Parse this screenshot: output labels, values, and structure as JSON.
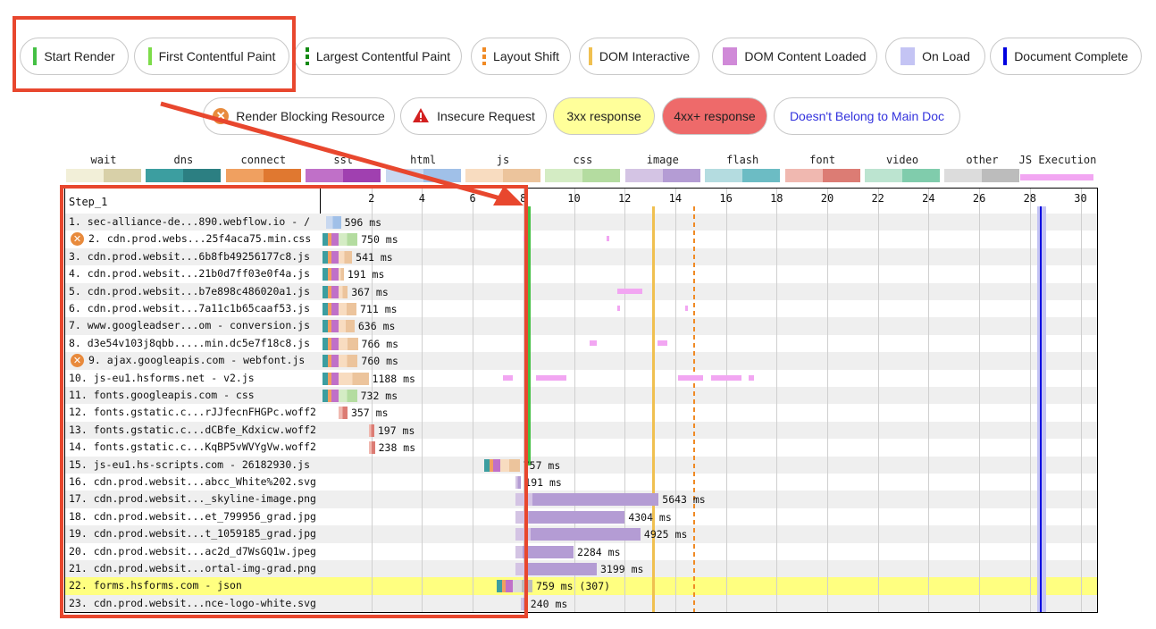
{
  "legend_row1": [
    {
      "label": "Start Render",
      "marker": "solid",
      "color": "#44c044"
    },
    {
      "label": "First Contentful Paint",
      "marker": "solid",
      "color": "#7ddc4a"
    },
    {
      "label": "Largest Contentful Paint",
      "marker": "dashed",
      "color": "#138a13"
    },
    {
      "label": "Layout Shift",
      "marker": "dashed",
      "color": "#f08a24"
    },
    {
      "label": "DOM Interactive",
      "marker": "solid",
      "color": "#f0c050"
    },
    {
      "label": "DOM Content Loaded",
      "marker": "block",
      "color": "#d08ad8"
    },
    {
      "label": "On Load",
      "marker": "block",
      "color": "#c4c4f4"
    },
    {
      "label": "Document Complete",
      "marker": "solid",
      "color": "#0000e0"
    }
  ],
  "legend_row2": [
    {
      "label": "Render Blocking Resource",
      "icon": "render-blocking-icon"
    },
    {
      "label": "Insecure Request",
      "icon": "warning-icon"
    },
    {
      "label": "3xx response",
      "bg": "#ffff9a"
    },
    {
      "label": "4xx+ response",
      "bg": "#ee6a6a"
    },
    {
      "label": "Doesn't Belong to Main Doc",
      "color": "#3333dd"
    }
  ],
  "type_legend": [
    {
      "label": "wait",
      "light": "#f2efd8",
      "dark": "#d8d0a8"
    },
    {
      "label": "dns",
      "light": "#3c9ea0",
      "dark": "#2c7f82"
    },
    {
      "label": "connect",
      "light": "#f0a060",
      "dark": "#e07830"
    },
    {
      "label": "ssl",
      "light": "#c070c8",
      "dark": "#a040b0"
    },
    {
      "label": "html",
      "light": "#c8d8f0",
      "dark": "#a0c0e8"
    },
    {
      "label": "js",
      "light": "#f8dcc0",
      "dark": "#ecc49c"
    },
    {
      "label": "css",
      "light": "#d4ecc4",
      "dark": "#b4dca0"
    },
    {
      "label": "image",
      "light": "#d4c4e4",
      "dark": "#b49cd4"
    },
    {
      "label": "flash",
      "light": "#b4dce0",
      "dark": "#6cbcc4"
    },
    {
      "label": "font",
      "light": "#f0b8b0",
      "dark": "#dc7c74"
    },
    {
      "label": "video",
      "light": "#bce4d0",
      "dark": "#80ccac"
    },
    {
      "label": "other",
      "light": "#dcdcdc",
      "dark": "#bcbcbc"
    },
    {
      "label": "JS Execution",
      "light": "#f2a6f2",
      "dark": "#f2a6f2"
    }
  ],
  "step_label": "Step_1",
  "ticks": [
    "2",
    "4",
    "6",
    "8",
    "10",
    "12",
    "14",
    "16",
    "18",
    "20",
    "22",
    "24",
    "26",
    "28",
    "30"
  ],
  "markers": {
    "start_render_s": 8.2,
    "dom_interactive_s": 13.1,
    "layout_shift_s": 14.7,
    "doc_complete_s": 28.4
  },
  "requests": [
    {
      "label": "1. sec-alliance-de...890.webflow.io - /",
      "start": 0.2,
      "dur": "596 ms",
      "dms": 596,
      "type": "html",
      "blocking": false,
      "highlight": false
    },
    {
      "label": "2. cdn.prod.webs...25f4aca75.min.css",
      "start": 0.7,
      "dur": "750 ms",
      "dms": 750,
      "type": "css",
      "blocking": true,
      "highlight": false
    },
    {
      "label": "3. cdn.prod.websit...6b8fb49256177c8.js",
      "start": 0.7,
      "dur": "541 ms",
      "dms": 541,
      "type": "js",
      "blocking": false,
      "highlight": false
    },
    {
      "label": "4. cdn.prod.websit...21b0d7ff03e0f4a.js",
      "start": 0.7,
      "dur": "191 ms",
      "dms": 191,
      "type": "js",
      "blocking": false,
      "highlight": false
    },
    {
      "label": "5. cdn.prod.websit...b7e898c486020a1.js",
      "start": 0.7,
      "dur": "367 ms",
      "dms": 367,
      "type": "js",
      "blocking": false,
      "highlight": false
    },
    {
      "label": "6. cdn.prod.websit...7a11c1b65caaf53.js",
      "start": 0.7,
      "dur": "711 ms",
      "dms": 711,
      "type": "js",
      "blocking": false,
      "highlight": false
    },
    {
      "label": "7. www.googleadser...om - conversion.js",
      "start": 0.7,
      "dur": "636 ms",
      "dms": 636,
      "type": "js",
      "blocking": false,
      "highlight": false
    },
    {
      "label": "8. d3e54v103j8qbb.....min.dc5e7f18c8.js",
      "start": 0.7,
      "dur": "766 ms",
      "dms": 766,
      "type": "js",
      "blocking": false,
      "highlight": false
    },
    {
      "label": "9. ajax.googleapis.com - webfont.js",
      "start": 0.7,
      "dur": "760 ms",
      "dms": 760,
      "type": "js",
      "blocking": true,
      "highlight": false
    },
    {
      "label": "10. js-eu1.hsforms.net - v2.js",
      "start": 0.7,
      "dur": "1188 ms",
      "dms": 1188,
      "type": "js",
      "blocking": false,
      "highlight": false
    },
    {
      "label": "11. fonts.googleapis.com - css",
      "start": 0.7,
      "dur": "732 ms",
      "dms": 732,
      "type": "css",
      "blocking": false,
      "highlight": false
    },
    {
      "label": "12. fonts.gstatic.c...rJJfecnFHGPc.woff2",
      "start": 0.7,
      "dur": "357 ms",
      "dms": 357,
      "type": "font",
      "blocking": false,
      "highlight": false
    },
    {
      "label": "13. fonts.gstatic.c...dCBfe_Kdxicw.woff2",
      "start": 1.9,
      "dur": "197 ms",
      "dms": 197,
      "type": "font",
      "blocking": false,
      "highlight": false
    },
    {
      "label": "14. fonts.gstatic.c...KqBP5vWVYgVw.woff2",
      "start": 1.9,
      "dur": "238 ms",
      "dms": 238,
      "type": "font",
      "blocking": false,
      "highlight": false
    },
    {
      "label": "15. js-eu1.hs-scripts.com - 26182930.js",
      "start": 7.1,
      "dur": "757 ms",
      "dms": 757,
      "type": "js",
      "blocking": false,
      "highlight": false
    },
    {
      "label": "16. cdn.prod.websit...abcc_White%202.svg",
      "start": 7.7,
      "dur": "191 ms",
      "dms": 191,
      "type": "image",
      "blocking": false,
      "highlight": false
    },
    {
      "label": "17. cdn.prod.websit..._skyline-image.png",
      "start": 7.7,
      "dur": "5643 ms",
      "dms": 5643,
      "type": "image",
      "blocking": false,
      "highlight": false
    },
    {
      "label": "18. cdn.prod.websit...et_799956_grad.jpg",
      "start": 7.7,
      "dur": "4304 ms",
      "dms": 4304,
      "type": "image",
      "blocking": false,
      "highlight": false
    },
    {
      "label": "19. cdn.prod.websit...t_1059185_grad.jpg",
      "start": 7.7,
      "dur": "4925 ms",
      "dms": 4925,
      "type": "image",
      "blocking": false,
      "highlight": false
    },
    {
      "label": "20. cdn.prod.websit...ac2d_d7WsGQ1w.jpeg",
      "start": 7.7,
      "dur": "2284 ms",
      "dms": 2284,
      "type": "image",
      "blocking": false,
      "highlight": false
    },
    {
      "label": "21. cdn.prod.websit...ortal-img-grad.png",
      "start": 7.7,
      "dur": "3199 ms",
      "dms": 3199,
      "type": "image",
      "blocking": false,
      "highlight": false
    },
    {
      "label": "22. forms.hsforms.com - json",
      "start": 7.6,
      "dur": "759 ms (307)",
      "dms": 759,
      "type": "other",
      "blocking": false,
      "highlight": true
    },
    {
      "label": "23. cdn.prod.websit...nce-logo-white.svg",
      "start": 7.9,
      "dur": "240 ms",
      "dms": 240,
      "type": "image",
      "blocking": false,
      "highlight": false
    }
  ]
}
